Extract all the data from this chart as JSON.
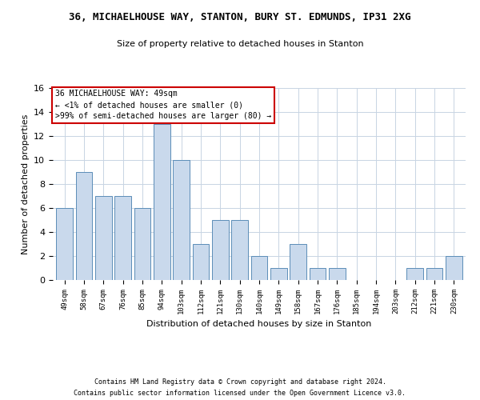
{
  "title": "36, MICHAELHOUSE WAY, STANTON, BURY ST. EDMUNDS, IP31 2XG",
  "subtitle": "Size of property relative to detached houses in Stanton",
  "xlabel": "Distribution of detached houses by size in Stanton",
  "ylabel": "Number of detached properties",
  "categories": [
    "49sqm",
    "58sqm",
    "67sqm",
    "76sqm",
    "85sqm",
    "94sqm",
    "103sqm",
    "112sqm",
    "121sqm",
    "130sqm",
    "140sqm",
    "149sqm",
    "158sqm",
    "167sqm",
    "176sqm",
    "185sqm",
    "194sqm",
    "203sqm",
    "212sqm",
    "221sqm",
    "230sqm"
  ],
  "values": [
    6,
    9,
    7,
    7,
    6,
    13,
    10,
    3,
    5,
    5,
    2,
    1,
    3,
    1,
    1,
    0,
    0,
    0,
    1,
    1,
    2
  ],
  "bar_color": "#c9d9ec",
  "bar_edge_color": "#5b8db8",
  "ylim": [
    0,
    16
  ],
  "yticks": [
    0,
    2,
    4,
    6,
    8,
    10,
    12,
    14,
    16
  ],
  "annotation_box_text": "36 MICHAELHOUSE WAY: 49sqm\n← <1% of detached houses are smaller (0)\n>99% of semi-detached houses are larger (80) →",
  "annotation_box_color": "#ffffff",
  "annotation_box_edge_color": "#cc0000",
  "footer_line1": "Contains HM Land Registry data © Crown copyright and database right 2024.",
  "footer_line2": "Contains public sector information licensed under the Open Government Licence v3.0.",
  "background_color": "#ffffff",
  "grid_color": "#c8d4e3"
}
